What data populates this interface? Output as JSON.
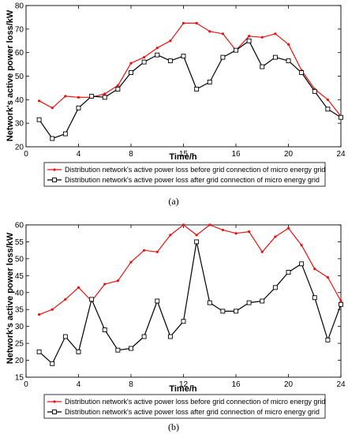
{
  "chart_data": [
    {
      "type": "line",
      "caption": "(a)",
      "xlabel": "Time/h",
      "ylabel": "Network's active power loss/kW",
      "xlim": [
        0,
        24
      ],
      "ylim": [
        20,
        80
      ],
      "xticks": [
        0,
        4,
        8,
        15,
        16,
        20,
        24
      ],
      "yticks": [
        20,
        30,
        40,
        50,
        60,
        70,
        80
      ],
      "grid": false,
      "legend_position": "bottom-center",
      "x": [
        1,
        2,
        3,
        4,
        5,
        6,
        7,
        8,
        9,
        10,
        11,
        12,
        13,
        14,
        15,
        16,
        17,
        18,
        19,
        20,
        21,
        22,
        23,
        24
      ],
      "series": [
        {
          "name": "Distribution network's active power loss before grid connection of micro energy grid",
          "color": "#ee1111",
          "marker": "dot",
          "values": [
            39.5,
            36.5,
            41.5,
            41,
            41,
            42.5,
            46,
            55.5,
            58,
            62,
            65,
            72.5,
            72.5,
            69,
            68,
            61,
            67,
            66.5,
            68,
            63.5,
            52.5,
            44.5,
            40,
            33
          ]
        },
        {
          "name": "Distribution network's active power loss after grid connection of micro energy grid",
          "color": "#000000",
          "marker": "square",
          "values": [
            31.5,
            23.5,
            25.5,
            36.5,
            41.5,
            41,
            44.5,
            51.5,
            56,
            59,
            56.5,
            58.5,
            44.5,
            47.5,
            58,
            61,
            65,
            54,
            58,
            56.5,
            51.5,
            43.5,
            36,
            32.5
          ]
        }
      ]
    },
    {
      "type": "line",
      "caption": "(b)",
      "xlabel": "Time/h",
      "ylabel": "Network's active power loss/kW",
      "xlim": [
        0,
        24
      ],
      "ylim": [
        15,
        60
      ],
      "xticks": [
        0,
        4,
        8,
        12,
        16,
        20,
        24
      ],
      "yticks": [
        15,
        20,
        25,
        30,
        35,
        40,
        45,
        50,
        55,
        60
      ],
      "grid": false,
      "legend_position": "bottom-center",
      "x": [
        1,
        2,
        3,
        4,
        5,
        6,
        7,
        8,
        9,
        10,
        11,
        12,
        13,
        14,
        15,
        16,
        17,
        18,
        19,
        20,
        21,
        22,
        23,
        24
      ],
      "series": [
        {
          "name": "Distribution network's active power loss before grid connection of micro energy grid",
          "color": "#ee1111",
          "marker": "dot",
          "values": [
            33.5,
            35,
            38,
            41.5,
            37.5,
            42.5,
            43.5,
            49,
            52.5,
            52,
            57,
            60,
            57,
            60,
            58.5,
            57.5,
            58,
            52,
            56.5,
            59,
            54,
            47,
            44.5,
            37.5
          ]
        },
        {
          "name": "Distribution network's active power loss after grid connection of micro energy grid",
          "color": "#000000",
          "marker": "square",
          "values": [
            22.5,
            19,
            27,
            22.5,
            38,
            29,
            23,
            23.5,
            27,
            37.5,
            27,
            31.5,
            55,
            37,
            34.5,
            34.5,
            37,
            37.5,
            41.5,
            46,
            48.5,
            38.5,
            26,
            36.5
          ]
        }
      ]
    }
  ]
}
